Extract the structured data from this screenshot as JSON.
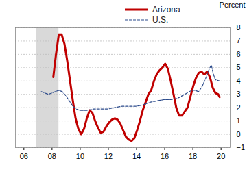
{
  "chart_data": {
    "type": "line",
    "y_label": "Percent",
    "xlim": [
      2005.4,
      2020.65
    ],
    "xticks": [
      {
        "value": 2006,
        "label": "06"
      },
      {
        "value": 2008,
        "label": "08"
      },
      {
        "value": 2010,
        "label": "10"
      },
      {
        "value": 2012,
        "label": "12"
      },
      {
        "value": 2014,
        "label": "14"
      },
      {
        "value": 2016,
        "label": "16"
      },
      {
        "value": 2018,
        "label": "18"
      },
      {
        "value": 2020,
        "label": "20"
      }
    ],
    "ylim": [
      -1,
      8
    ],
    "yticks": [
      -1,
      0,
      1,
      2,
      3,
      4,
      5,
      6,
      7,
      8
    ],
    "grid": true,
    "legend": "top",
    "shaded": [
      {
        "start": 2006.89,
        "end": 2008.48
      }
    ],
    "series": [
      {
        "name": "Arizona",
        "color": "#c00000",
        "line_style": "solid",
        "x": [
          2008.09,
          2008.28,
          2008.48,
          2008.68,
          2008.88,
          2009.08,
          2009.28,
          2009.48,
          2009.67,
          2009.87,
          2010.07,
          2010.27,
          2010.47,
          2010.67,
          2010.87,
          2011.06,
          2011.26,
          2011.46,
          2011.66,
          2011.86,
          2012.06,
          2012.26,
          2012.45,
          2012.65,
          2012.85,
          2013.05,
          2013.25,
          2013.45,
          2013.65,
          2013.84,
          2014.04,
          2014.24,
          2014.44,
          2014.64,
          2014.84,
          2015.04,
          2015.24,
          2015.43,
          2015.63,
          2015.83,
          2016.03,
          2016.23,
          2016.43,
          2016.63,
          2016.82,
          2017.02,
          2017.22,
          2017.42,
          2017.62,
          2017.82,
          2018.02,
          2018.21,
          2018.41,
          2018.61,
          2018.81,
          2019.01,
          2019.21,
          2019.41,
          2019.6,
          2019.8,
          2019.9
        ],
        "values": [
          4.3,
          6.0,
          7.5,
          7.5,
          6.8,
          5.5,
          4.0,
          2.5,
          1.2,
          0.4,
          0.0,
          0.4,
          1.2,
          1.8,
          1.6,
          1.0,
          0.5,
          0.1,
          0.2,
          0.6,
          0.9,
          1.1,
          1.2,
          1.1,
          0.8,
          0.3,
          -0.2,
          -0.4,
          -0.5,
          -0.3,
          0.3,
          1.0,
          1.8,
          2.4,
          3.0,
          3.3,
          4.0,
          4.5,
          4.8,
          5.0,
          5.3,
          4.9,
          4.0,
          3.0,
          2.0,
          1.4,
          1.4,
          1.7,
          2.0,
          2.8,
          3.6,
          4.2,
          4.6,
          4.7,
          4.5,
          4.7,
          4.3,
          3.5,
          3.1,
          3.0,
          2.8
        ]
      },
      {
        "name": "U.S.",
        "color": "#2b4a8b",
        "line_style": "dashed",
        "x": [
          2007.24,
          2007.49,
          2007.74,
          2007.99,
          2008.23,
          2008.48,
          2008.73,
          2008.98,
          2009.23,
          2009.48,
          2009.72,
          2009.97,
          2010.47,
          2010.97,
          2011.46,
          2011.96,
          2012.45,
          2012.95,
          2013.45,
          2013.94,
          2014.44,
          2014.94,
          2015.43,
          2015.93,
          2016.43,
          2016.92,
          2017.42,
          2017.92,
          2018.16,
          2018.41,
          2018.66,
          2018.91,
          2019.16,
          2019.31,
          2019.46,
          2019.6,
          2019.9
        ],
        "values": [
          3.2,
          3.1,
          3.0,
          3.1,
          3.2,
          3.3,
          3.2,
          2.9,
          2.5,
          2.1,
          1.9,
          1.8,
          1.8,
          1.9,
          1.9,
          1.9,
          2.0,
          2.1,
          2.1,
          2.1,
          2.2,
          2.4,
          2.5,
          2.6,
          2.6,
          2.7,
          3.0,
          3.3,
          3.3,
          3.2,
          3.6,
          4.2,
          4.9,
          5.2,
          4.5,
          4.1,
          4.0
        ]
      }
    ]
  }
}
